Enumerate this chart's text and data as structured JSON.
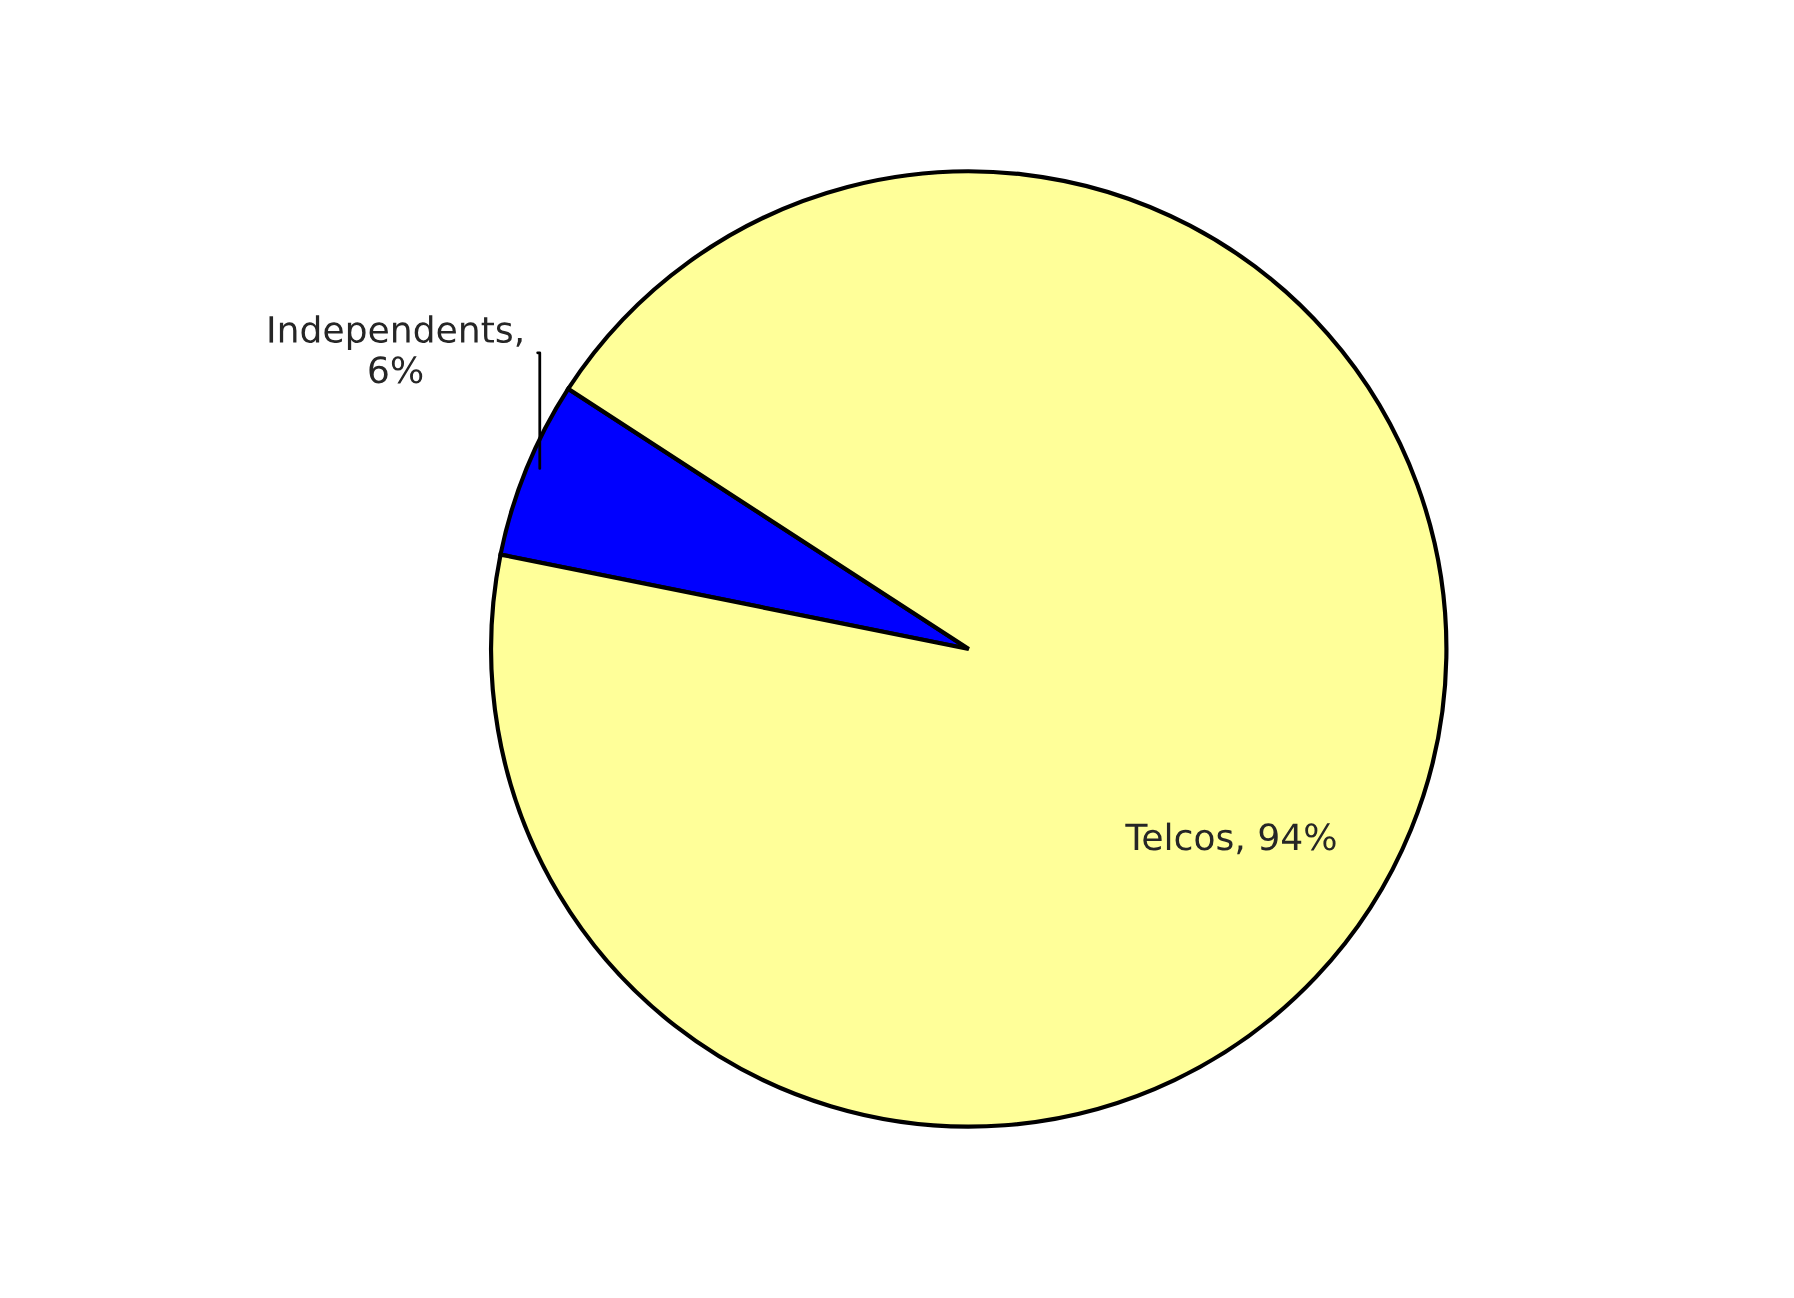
{
  "chart_data": {
    "type": "pie",
    "categories": [
      "Independents, 6%",
      "Telcos, 94%"
    ],
    "values": [
      6,
      94
    ],
    "colors": [
      "#0000ff",
      "#ffff99"
    ]
  }
}
